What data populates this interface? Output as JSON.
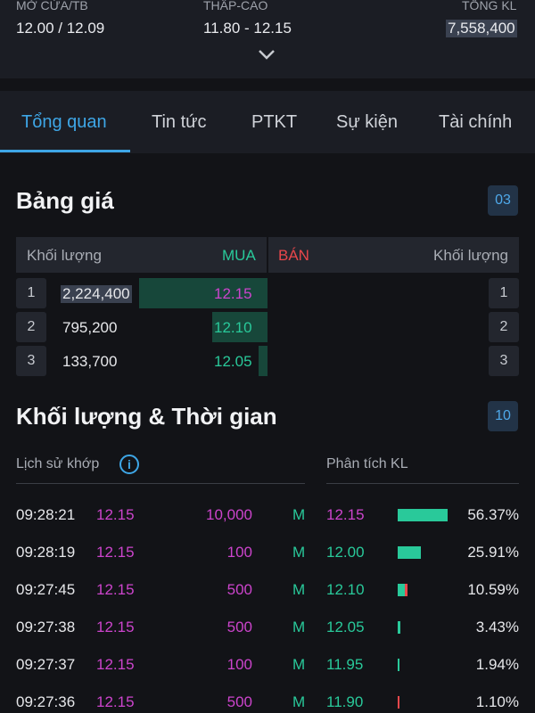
{
  "header": {
    "open_avg": {
      "label": "MỞ CỬA/TB",
      "value": "12.00 / 12.09"
    },
    "low_high": {
      "label": "THẤP-CAO",
      "value": "11.80 - 12.15"
    },
    "total_volume": {
      "label": "TỔNG KL",
      "value": "7,558,400"
    },
    "expand_icon": "chevron-down-icon"
  },
  "tabs": [
    {
      "label": "Tổng quan",
      "active": true
    },
    {
      "label": "Tin tức"
    },
    {
      "label": "PTKT"
    },
    {
      "label": "Sự kiện"
    },
    {
      "label": "Tài chính"
    }
  ],
  "order_book": {
    "title": "Bảng giá",
    "badge": "03",
    "header": {
      "buy_volume": "Khối lượng",
      "buy": "MUA",
      "sell": "BÁN",
      "sell_volume": "Khối lượng"
    },
    "rows": [
      {
        "index": "1",
        "volume": "2,224,400",
        "price": "12.15",
        "share": 0.56,
        "sell_index": "1"
      },
      {
        "index": "2",
        "volume": "795,200",
        "price": "12.10",
        "share": 0.22,
        "sell_index": "2"
      },
      {
        "index": "3",
        "volume": "133,700",
        "price": "12.05",
        "share": 0.04,
        "sell_index": "3"
      }
    ]
  },
  "time_sales": {
    "title": "Khối lượng & Thời gian",
    "badge": "10",
    "history_label": "Lịch sử khớp",
    "analysis_label": "Phân tích KL",
    "trades": [
      {
        "time": "09:28:21",
        "price": "12.15",
        "volume": "10,000",
        "side": "M"
      },
      {
        "time": "09:28:19",
        "price": "12.15",
        "volume": "100",
        "side": "M"
      },
      {
        "time": "09:27:45",
        "price": "12.15",
        "volume": "500",
        "side": "M"
      },
      {
        "time": "09:27:38",
        "price": "12.15",
        "volume": "500",
        "side": "M"
      },
      {
        "time": "09:27:37",
        "price": "12.15",
        "volume": "100",
        "side": "M"
      },
      {
        "time": "09:27:36",
        "price": "12.15",
        "volume": "500",
        "side": "M"
      }
    ],
    "analysis": [
      {
        "price": "12.15",
        "percent": "56.37%",
        "value": 56.37,
        "buy_ratio": 1.0
      },
      {
        "price": "12.00",
        "percent": "25.91%",
        "value": 25.91,
        "buy_ratio": 1.0
      },
      {
        "price": "12.10",
        "percent": "10.59%",
        "value": 10.59,
        "buy_ratio": 0.7
      },
      {
        "price": "12.05",
        "percent": "3.43%",
        "value": 3.43,
        "buy_ratio": 1.0
      },
      {
        "price": "11.95",
        "percent": "1.94%",
        "value": 1.94,
        "buy_ratio": 1.0
      },
      {
        "price": "11.90",
        "percent": "1.10%",
        "value": 1.1,
        "buy_ratio": 0.0
      }
    ]
  },
  "colors": {
    "accent": "#3ea6e6",
    "buy": "#29c99a",
    "sell": "#e8474b",
    "ceiling": "#cc44cc"
  }
}
